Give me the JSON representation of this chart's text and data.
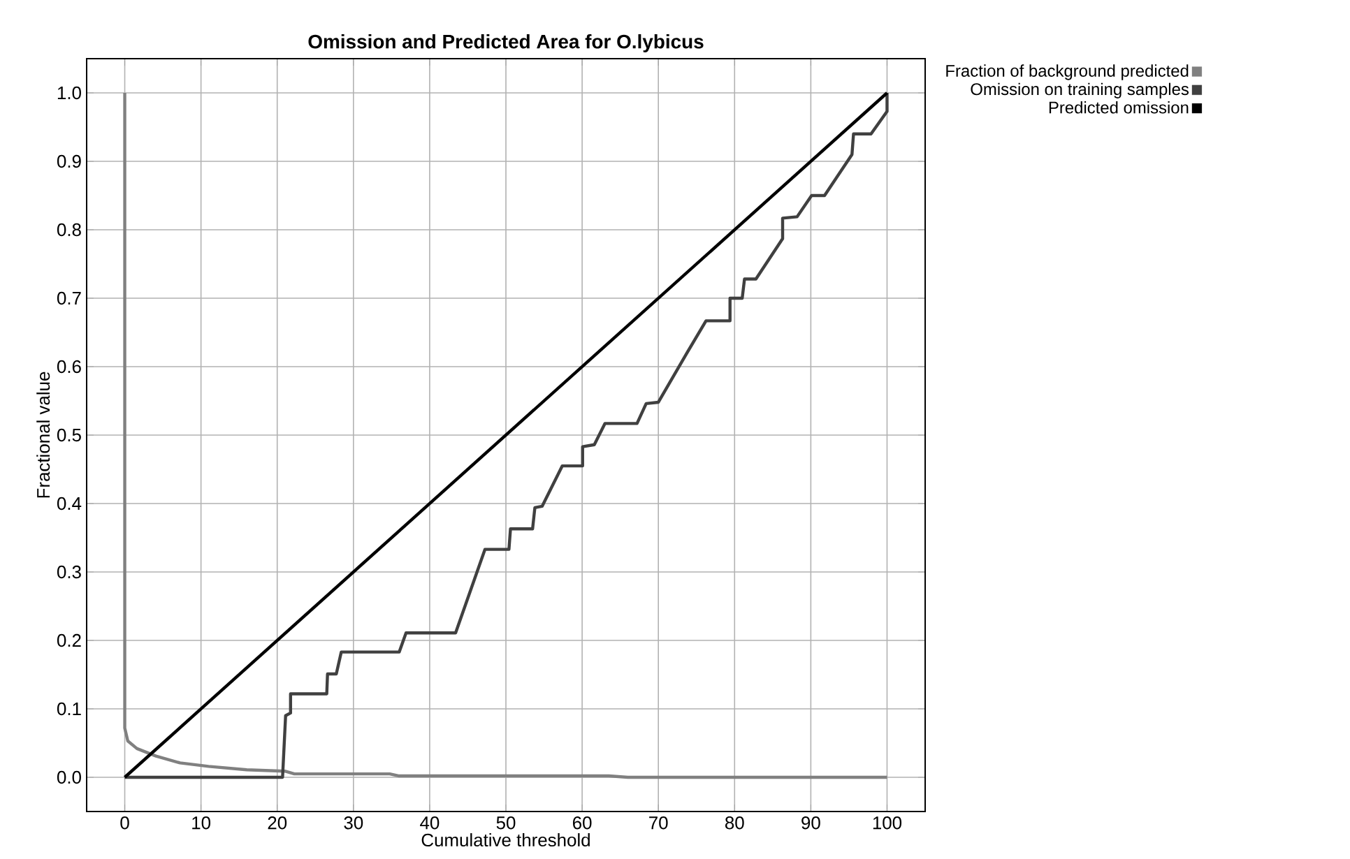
{
  "chart_data": {
    "type": "line",
    "title": "Omission and Predicted Area for O.lybicus",
    "xlabel": "Cumulative threshold",
    "ylabel": "Fractional value",
    "xlim": [
      -5,
      105
    ],
    "ylim": [
      -0.05,
      1.05
    ],
    "xticks": [
      0,
      10,
      20,
      30,
      40,
      50,
      60,
      70,
      80,
      90,
      100
    ],
    "yticks": [
      {
        "value": 0,
        "label": "0.0"
      },
      {
        "value": 0.1,
        "label": "0.1"
      },
      {
        "value": 0.2,
        "label": "0.2"
      },
      {
        "value": 0.3,
        "label": "0.3"
      },
      {
        "value": 0.4,
        "label": "0.4"
      },
      {
        "value": 0.5,
        "label": "0.5"
      },
      {
        "value": 0.6,
        "label": "0.6"
      },
      {
        "value": 0.7,
        "label": "0.7"
      },
      {
        "value": 0.8,
        "label": "0.8"
      },
      {
        "value": 0.9,
        "label": "0.9"
      },
      {
        "value": 1,
        "label": "1.0"
      }
    ],
    "grid": true,
    "legend": "right",
    "marker": "none",
    "line_style": "solid",
    "series": [
      {
        "name": "Fraction of background predicted",
        "color": "#808080",
        "x": [
          0,
          0,
          0.4,
          1.6,
          4.1,
          7.25,
          11,
          16,
          21,
          22.25,
          34.75,
          36,
          63.5,
          66,
          100
        ],
        "values": [
          1.0,
          0.072,
          0.053,
          0.042,
          0.031,
          0.021,
          0.016,
          0.011,
          0.009,
          0.005,
          0.005,
          0.002,
          0.002,
          0,
          0
        ]
      },
      {
        "name": "Omission on training samples",
        "color": "#404040",
        "x": [
          0,
          20.7,
          21.1,
          21.75,
          21.75,
          26.5,
          26.6,
          27.75,
          28.4,
          36,
          36.9,
          43.4,
          47.25,
          50.4,
          50.6,
          53.5,
          53.8,
          54.75,
          57.4,
          60.06,
          60.06,
          61.6,
          63,
          67.2,
          68.4,
          70,
          73.75,
          76.25,
          79.4,
          79.4,
          81,
          81.3,
          82.8,
          86.3,
          86.3,
          88.2,
          90.1,
          91.8,
          95.4,
          95.6,
          97.9,
          100,
          100
        ],
        "values": [
          0,
          0,
          0.09,
          0.094,
          0.122,
          0.122,
          0.151,
          0.151,
          0.183,
          0.183,
          0.211,
          0.211,
          0.333,
          0.333,
          0.363,
          0.363,
          0.394,
          0.396,
          0.455,
          0.455,
          0.483,
          0.486,
          0.517,
          0.517,
          0.546,
          0.548,
          0.62,
          0.667,
          0.667,
          0.7,
          0.7,
          0.728,
          0.728,
          0.787,
          0.817,
          0.819,
          0.85,
          0.85,
          0.91,
          0.94,
          0.94,
          0.973,
          1.0
        ]
      },
      {
        "name": "Predicted omission",
        "color": "#000000",
        "x": [
          0,
          100
        ],
        "values": [
          0,
          1
        ]
      }
    ]
  }
}
